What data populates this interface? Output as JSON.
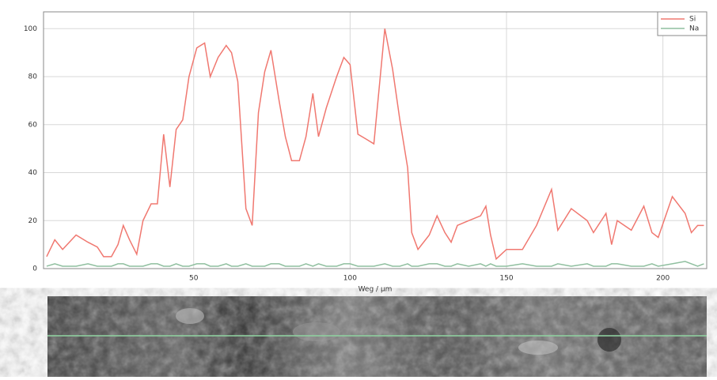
{
  "chart_data": {
    "type": "line",
    "x_label": "Weg / µm",
    "x": [
      3.0,
      5.6,
      8.1,
      12.4,
      16.2,
      19.2,
      21.2,
      23.7,
      25.8,
      27.5,
      29.5,
      31.8,
      33.8,
      36.4,
      38.4,
      40.4,
      42.4,
      44.4,
      46.5,
      48.5,
      51.0,
      53.5,
      55.3,
      57.8,
      60.4,
      62.1,
      64.1,
      66.7,
      68.7,
      70.7,
      72.7,
      74.7,
      77.3,
      79.3,
      81.3,
      83.8,
      85.9,
      88.1,
      89.9,
      92.4,
      95.7,
      98.0,
      100.0,
      102.5,
      105.1,
      107.6,
      111.1,
      113.6,
      115.9,
      118.4,
      119.7,
      121.7,
      125.3,
      127.8,
      130.3,
      132.3,
      134.3,
      137.9,
      141.7,
      143.4,
      144.9,
      146.7,
      150.0,
      155.1,
      159.6,
      164.4,
      166.4,
      170.7,
      175.8,
      177.8,
      181.8,
      183.6,
      185.4,
      189.9,
      193.9,
      196.5,
      198.5,
      203.0,
      207.1,
      209.1,
      211.1,
      213.1
    ],
    "series": [
      {
        "name": "Si",
        "color": "#f07870",
        "values": [
          5,
          12,
          8,
          14,
          11,
          9,
          5,
          5,
          10,
          18,
          12,
          6,
          20,
          27,
          27,
          56,
          34,
          58,
          62,
          80,
          92,
          94,
          80,
          88,
          93,
          90,
          78,
          25,
          18,
          65,
          82,
          91,
          70,
          55,
          45,
          45,
          55,
          73,
          55,
          67,
          80,
          88,
          85,
          56,
          54,
          52,
          100,
          83,
          62,
          42,
          15,
          8,
          14,
          22,
          15,
          11,
          18,
          20,
          22,
          26,
          14,
          4,
          8,
          8,
          18,
          33,
          16,
          25,
          20,
          15,
          23,
          10,
          20,
          16,
          26,
          15,
          13,
          30,
          23,
          15,
          18,
          18
        ]
      },
      {
        "name": "Na",
        "color": "#8fbf9f",
        "values": [
          1,
          2,
          1,
          1,
          2,
          1,
          1,
          1,
          2,
          2,
          1,
          1,
          1,
          2,
          2,
          1,
          1,
          2,
          1,
          1,
          2,
          2,
          1,
          1,
          2,
          1,
          1,
          2,
          1,
          1,
          1,
          2,
          2,
          1,
          1,
          1,
          2,
          1,
          2,
          1,
          1,
          2,
          2,
          1,
          1,
          1,
          2,
          1,
          1,
          2,
          1,
          1,
          2,
          2,
          1,
          1,
          2,
          1,
          2,
          1,
          2,
          1,
          1,
          2,
          1,
          1,
          2,
          1,
          2,
          1,
          1,
          2,
          2,
          1,
          1,
          2,
          1,
          2,
          3,
          2,
          1,
          2
        ]
      }
    ],
    "xlim": [
      2,
      214
    ],
    "ylim": [
      0,
      107
    ],
    "xticks": [
      50,
      100,
      150,
      200
    ],
    "yticks": [
      0,
      20,
      40,
      60,
      80,
      100
    ],
    "grid": true,
    "legend": "upper right"
  }
}
